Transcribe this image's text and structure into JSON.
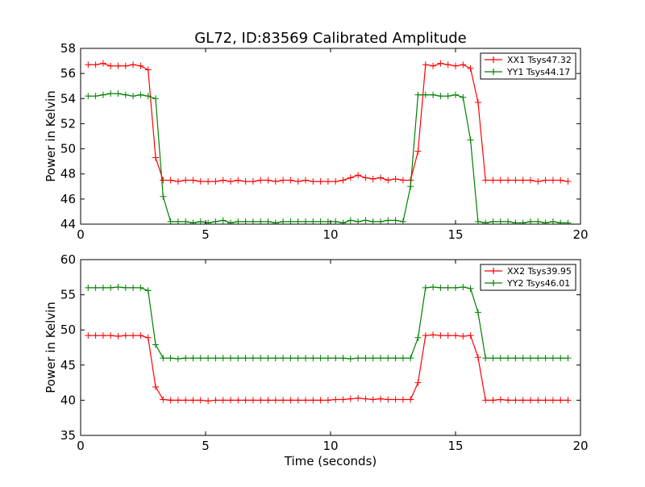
{
  "figure": {
    "title": "GL72, ID:83569 Calibrated Amplitude"
  },
  "chart_data": [
    {
      "type": "line",
      "xlabel": "",
      "ylabel": "Power in Kelvin",
      "xlim": [
        0,
        20
      ],
      "ylim": [
        44,
        58
      ],
      "xticks": [
        0,
        5,
        10,
        15,
        20
      ],
      "yticks": [
        44,
        46,
        48,
        50,
        52,
        54,
        56,
        58
      ],
      "grid": false,
      "legend_position": "top-right",
      "x": [
        0.3,
        0.6,
        0.9,
        1.2,
        1.5,
        1.8,
        2.1,
        2.4,
        2.7,
        3.0,
        3.3,
        3.6,
        3.9,
        4.2,
        4.5,
        4.8,
        5.1,
        5.4,
        5.7,
        6.0,
        6.3,
        6.6,
        6.9,
        7.2,
        7.5,
        7.8,
        8.1,
        8.4,
        8.7,
        9.0,
        9.3,
        9.6,
        9.9,
        10.2,
        10.5,
        10.8,
        11.1,
        11.4,
        11.7,
        12.0,
        12.3,
        12.6,
        12.9,
        13.2,
        13.5,
        13.8,
        14.1,
        14.4,
        14.7,
        15.0,
        15.3,
        15.6,
        15.9,
        16.2,
        16.5,
        16.8,
        17.1,
        17.4,
        17.7,
        18.0,
        18.3,
        18.6,
        18.9,
        19.2,
        19.5
      ],
      "series": [
        {
          "name": "XX1 Tsys47.32",
          "color": "#ff0000",
          "values": [
            56.7,
            56.7,
            56.8,
            56.6,
            56.6,
            56.6,
            56.7,
            56.6,
            56.3,
            49.3,
            47.5,
            47.5,
            47.4,
            47.5,
            47.5,
            47.4,
            47.4,
            47.4,
            47.5,
            47.4,
            47.5,
            47.4,
            47.4,
            47.5,
            47.5,
            47.4,
            47.5,
            47.5,
            47.4,
            47.5,
            47.4,
            47.4,
            47.4,
            47.4,
            47.5,
            47.7,
            47.9,
            47.7,
            47.6,
            47.7,
            47.5,
            47.6,
            47.5,
            47.5,
            49.8,
            56.7,
            56.6,
            56.8,
            56.7,
            56.6,
            56.7,
            56.4,
            53.7,
            47.5,
            47.5,
            47.5,
            47.5,
            47.5,
            47.5,
            47.5,
            47.4,
            47.5,
            47.5,
            47.5,
            47.4
          ]
        },
        {
          "name": "YY1 Tsys44.17",
          "color": "#008000",
          "values": [
            54.2,
            54.2,
            54.3,
            54.4,
            54.4,
            54.3,
            54.2,
            54.3,
            54.2,
            54.0,
            46.2,
            44.2,
            44.2,
            44.2,
            44.1,
            44.2,
            44.1,
            44.2,
            44.3,
            44.1,
            44.2,
            44.2,
            44.2,
            44.2,
            44.2,
            44.1,
            44.2,
            44.2,
            44.2,
            44.2,
            44.2,
            44.2,
            44.2,
            44.2,
            44.1,
            44.3,
            44.2,
            44.3,
            44.2,
            44.2,
            44.3,
            44.3,
            44.2,
            47.0,
            54.3,
            54.3,
            54.3,
            54.2,
            54.2,
            54.3,
            54.1,
            50.7,
            44.2,
            44.1,
            44.2,
            44.2,
            44.2,
            44.1,
            44.1,
            44.2,
            44.2,
            44.1,
            44.2,
            44.1,
            44.1
          ]
        }
      ]
    },
    {
      "type": "line",
      "xlabel": "Time (seconds)",
      "ylabel": "Power in Kelvin",
      "xlim": [
        0,
        20
      ],
      "ylim": [
        35,
        60
      ],
      "xticks": [
        0,
        5,
        10,
        15,
        20
      ],
      "yticks": [
        35,
        40,
        45,
        50,
        55,
        60
      ],
      "grid": false,
      "legend_position": "top-right",
      "x": [
        0.3,
        0.6,
        0.9,
        1.2,
        1.5,
        1.8,
        2.1,
        2.4,
        2.7,
        3.0,
        3.3,
        3.6,
        3.9,
        4.2,
        4.5,
        4.8,
        5.1,
        5.4,
        5.7,
        6.0,
        6.3,
        6.6,
        6.9,
        7.2,
        7.5,
        7.8,
        8.1,
        8.4,
        8.7,
        9.0,
        9.3,
        9.6,
        9.9,
        10.2,
        10.5,
        10.8,
        11.1,
        11.4,
        11.7,
        12.0,
        12.3,
        12.6,
        12.9,
        13.2,
        13.5,
        13.8,
        14.1,
        14.4,
        14.7,
        15.0,
        15.3,
        15.6,
        15.9,
        16.2,
        16.5,
        16.8,
        17.1,
        17.4,
        17.7,
        18.0,
        18.3,
        18.6,
        18.9,
        19.2,
        19.5
      ],
      "series": [
        {
          "name": "XX2 Tsys39.95",
          "color": "#ff0000",
          "values": [
            49.2,
            49.2,
            49.2,
            49.2,
            49.1,
            49.2,
            49.2,
            49.2,
            48.9,
            41.9,
            40.1,
            40.0,
            40.0,
            40.0,
            40.0,
            40.0,
            39.9,
            40.0,
            40.0,
            40.0,
            40.0,
            40.0,
            40.0,
            40.0,
            40.0,
            40.0,
            40.0,
            40.0,
            40.0,
            40.0,
            40.0,
            40.0,
            40.0,
            40.1,
            40.1,
            40.2,
            40.3,
            40.2,
            40.1,
            40.2,
            40.1,
            40.1,
            40.1,
            40.1,
            42.5,
            49.2,
            49.3,
            49.2,
            49.2,
            49.2,
            49.1,
            49.2,
            46.1,
            40.0,
            40.0,
            40.1,
            40.0,
            40.0,
            40.0,
            40.0,
            40.0,
            40.0,
            40.0,
            40.0,
            40.0
          ]
        },
        {
          "name": "YY2 Tsys46.01",
          "color": "#008000",
          "values": [
            56.0,
            56.0,
            56.0,
            56.0,
            56.1,
            56.0,
            56.0,
            56.0,
            55.6,
            47.9,
            46.0,
            46.0,
            45.9,
            46.0,
            46.0,
            46.0,
            46.0,
            46.0,
            46.0,
            46.0,
            46.0,
            46.0,
            46.0,
            46.0,
            46.0,
            46.0,
            46.0,
            46.0,
            46.0,
            46.0,
            46.0,
            46.0,
            46.0,
            46.0,
            46.0,
            45.9,
            46.0,
            46.0,
            46.0,
            46.0,
            46.0,
            46.0,
            46.0,
            46.0,
            48.9,
            56.0,
            56.1,
            56.0,
            56.0,
            56.0,
            56.1,
            55.9,
            52.5,
            46.0,
            46.0,
            46.0,
            46.0,
            46.0,
            46.0,
            46.0,
            46.0,
            46.0,
            46.0,
            46.0,
            46.0
          ]
        }
      ]
    }
  ]
}
